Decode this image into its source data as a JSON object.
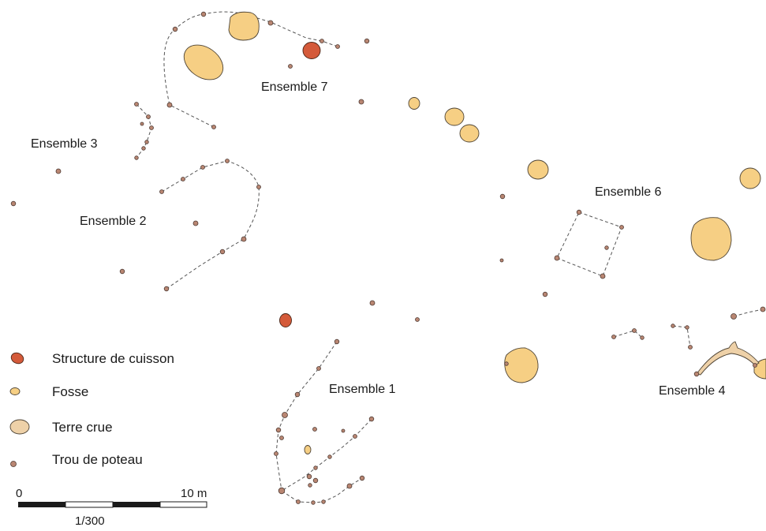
{
  "ensembles": {
    "e1": "Ensemble 1",
    "e2": "Ensemble 2",
    "e3": "Ensemble 3",
    "e4": "Ensemble 4",
    "e6": "Ensemble 6",
    "e7": "Ensemble 7"
  },
  "legend": {
    "items": [
      {
        "key": "cuisson",
        "label": "Structure de cuisson",
        "color": "#d45a3a"
      },
      {
        "key": "fosse",
        "label": "Fosse",
        "color": "#f6cf84"
      },
      {
        "key": "terre",
        "label": "Terre crue",
        "color": "#eed1a8"
      },
      {
        "key": "poteau",
        "label": "Trou de poteau",
        "color": "#b98672"
      }
    ]
  },
  "scale": {
    "start": "0",
    "end": "10 m",
    "ratio": "1/300"
  }
}
